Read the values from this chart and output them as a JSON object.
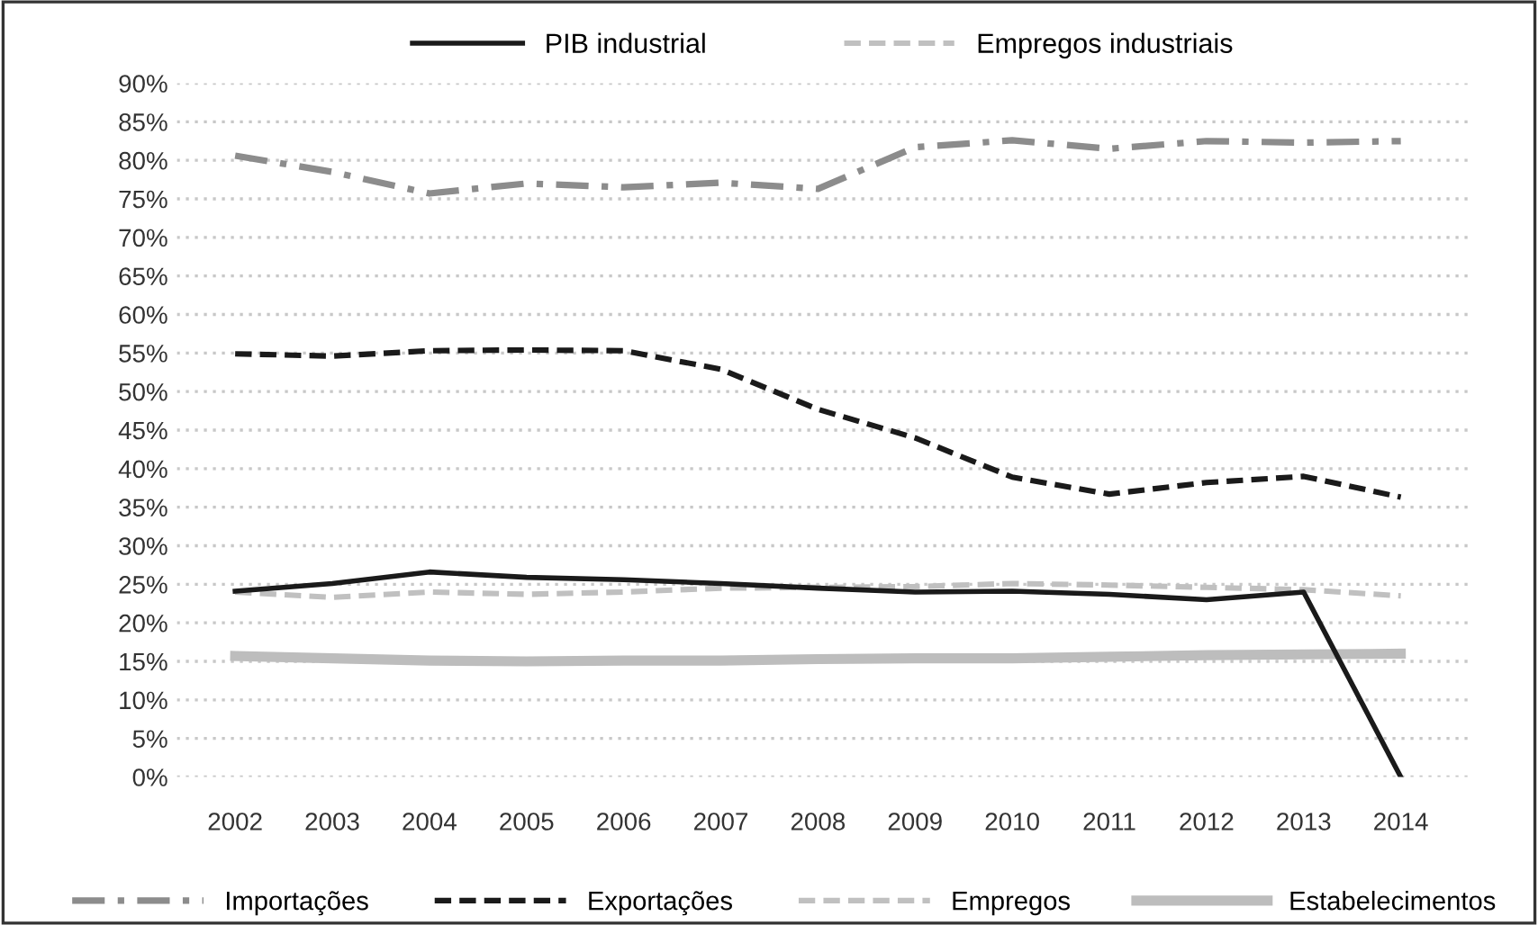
{
  "chart_data": {
    "type": "line",
    "categories": [
      "2002",
      "2003",
      "2004",
      "2005",
      "2006",
      "2007",
      "2008",
      "2009",
      "2010",
      "2011",
      "2012",
      "2013",
      "2014"
    ],
    "ylim": [
      0,
      90
    ],
    "yticks": [
      {
        "value": 0,
        "label": "0%"
      },
      {
        "value": 5,
        "label": "5%"
      },
      {
        "value": 10,
        "label": "10%"
      },
      {
        "value": 15,
        "label": "15%"
      },
      {
        "value": 20,
        "label": "20%"
      },
      {
        "value": 25,
        "label": "25%"
      },
      {
        "value": 30,
        "label": "30%"
      },
      {
        "value": 35,
        "label": "35%"
      },
      {
        "value": 40,
        "label": "40%"
      },
      {
        "value": 45,
        "label": "45%"
      },
      {
        "value": 50,
        "label": "50%"
      },
      {
        "value": 55,
        "label": "55%"
      },
      {
        "value": 60,
        "label": "60%"
      },
      {
        "value": 65,
        "label": "65%"
      },
      {
        "value": 70,
        "label": "70%"
      },
      {
        "value": 75,
        "label": "75%"
      },
      {
        "value": 80,
        "label": "80%"
      },
      {
        "value": 85,
        "label": "85%"
      },
      {
        "value": 90,
        "label": "90%"
      }
    ],
    "grid": "y",
    "legend": "bottom",
    "annotations": [
      "Empregos industriais"
    ],
    "series": [
      {
        "name": "PIB industrial",
        "color": "#1a1a1a",
        "line_style": "solid",
        "values": [
          24.1,
          25.1,
          26.6,
          25.9,
          25.6,
          25.1,
          24.5,
          24.0,
          24.1,
          23.7,
          23.0,
          24.0,
          0
        ]
      },
      {
        "name": "Importações",
        "color": "#8c8c8c",
        "line_style": "dashdot",
        "values": [
          80.6,
          78.5,
          75.7,
          77.0,
          76.5,
          77.1,
          76.3,
          81.7,
          82.6,
          81.5,
          82.5,
          82.3,
          82.5
        ]
      },
      {
        "name": "Exportações",
        "color": "#1a1a1a",
        "line_style": "dashed",
        "values": [
          54.9,
          54.6,
          55.3,
          55.4,
          55.3,
          52.9,
          47.7,
          44.0,
          38.9,
          36.7,
          38.2,
          39.0,
          36.3
        ]
      },
      {
        "name": "Empregos",
        "color": "#c0c0c0",
        "line_style": "dashed",
        "values": [
          24.0,
          23.3,
          24.0,
          23.7,
          24.0,
          24.5,
          24.6,
          24.7,
          25.1,
          24.9,
          24.6,
          24.3,
          23.5
        ]
      },
      {
        "name": "Estabelecimentos",
        "color": "#bdbdbd",
        "line_style": "solid",
        "values": [
          15.7,
          15.4,
          15.1,
          15.0,
          15.1,
          15.1,
          15.3,
          15.4,
          15.4,
          15.6,
          15.8,
          15.9,
          16.0
        ]
      }
    ]
  }
}
